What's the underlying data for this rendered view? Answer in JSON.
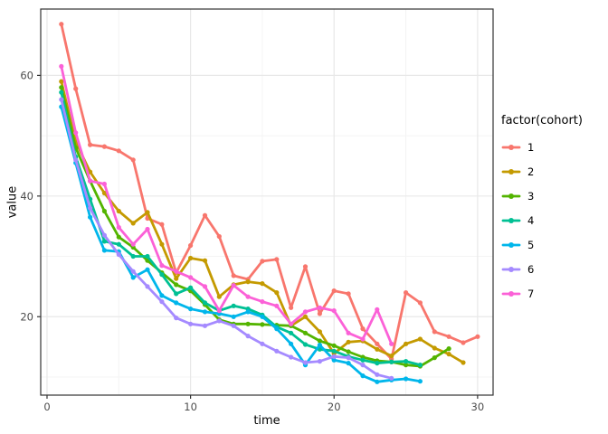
{
  "chart_data": {
    "type": "line",
    "title": "",
    "xlabel": "time",
    "ylabel": "value",
    "legend_title": "factor(cohort)",
    "legend_position": "right",
    "grid": "on",
    "background": "#ffffff",
    "panel_border_color": "#333333",
    "major_grid_color": "#e8e8e8",
    "minor_grid_color": "#f4f4f4",
    "tick_label_color": "#4d4d4d",
    "xlim": [
      -0.44,
      31.08
    ],
    "ylim": [
      7,
      71
    ],
    "x_ticks": [
      0,
      10,
      20,
      30
    ],
    "x_minor_ticks": [
      5,
      15,
      25
    ],
    "y_ticks": [
      20,
      40,
      60
    ],
    "y_minor_ticks": [
      10,
      30,
      50
    ],
    "series": [
      {
        "name": "1",
        "color": "#F8766D",
        "x": [
          1,
          2,
          3,
          4,
          5,
          6,
          7,
          8,
          9,
          10,
          11,
          12,
          13,
          14,
          15,
          16,
          17,
          18,
          19,
          20,
          21,
          22,
          23,
          24,
          25,
          26,
          27,
          28,
          29,
          30
        ],
        "values": [
          68.5,
          57.8,
          48.5,
          48.2,
          47.5,
          46,
          36.3,
          35.3,
          27.3,
          31.8,
          36.8,
          33.3,
          26.8,
          26.2,
          29.2,
          29.5,
          21.5,
          28.3,
          20.5,
          24.3,
          23.8,
          18,
          15.5,
          13,
          24,
          22.3,
          17.5,
          16.7,
          15.7,
          16.7
        ]
      },
      {
        "name": "2",
        "color": "#C49A00",
        "x": [
          1,
          2,
          3,
          4,
          5,
          6,
          7,
          8,
          9,
          10,
          11,
          12,
          13,
          14,
          15,
          16,
          17,
          18,
          19,
          20,
          21,
          22,
          23,
          24,
          25,
          26,
          27,
          28,
          29
        ],
        "values": [
          59,
          49,
          44,
          40.5,
          37.5,
          35.5,
          37.3,
          32,
          26.3,
          29.7,
          29.3,
          23.3,
          25.3,
          25.8,
          25.5,
          24,
          18.5,
          20,
          17.5,
          13.9,
          15.8,
          16,
          14.6,
          13.5,
          15.5,
          16.3,
          14.8,
          13.8,
          12.4
        ]
      },
      {
        "name": "3",
        "color": "#53B400",
        "x": [
          1,
          2,
          3,
          4,
          5,
          6,
          7,
          8,
          9,
          10,
          11,
          12,
          13,
          14,
          15,
          16,
          17,
          18,
          19,
          20,
          21,
          22,
          23,
          24,
          25,
          26,
          27,
          28
        ],
        "values": [
          58,
          48,
          42.5,
          37.5,
          33.2,
          31.5,
          29.3,
          27.3,
          25.3,
          24.3,
          22,
          19.5,
          18.8,
          18.8,
          18.7,
          18.6,
          18.5,
          17.3,
          16,
          15.2,
          14.2,
          13.3,
          12.7,
          12.5,
          12,
          11.8,
          13.2,
          14.7
        ]
      },
      {
        "name": "4",
        "color": "#00C094",
        "x": [
          1,
          2,
          3,
          4,
          5,
          6,
          7,
          8,
          9,
          10,
          11,
          12,
          13,
          14,
          15,
          16,
          17,
          18,
          19,
          20,
          21,
          22,
          23,
          24,
          25,
          26
        ],
        "values": [
          57.2,
          46.5,
          39.5,
          32.5,
          32,
          30,
          30,
          27,
          23.8,
          24.8,
          22.3,
          21,
          21.8,
          21.3,
          20.3,
          18.3,
          17.3,
          15.4,
          14.6,
          14.3,
          13.4,
          12.8,
          12.3,
          12.5,
          12.6,
          12
        ]
      },
      {
        "name": "5",
        "color": "#00B6EB",
        "x": [
          1,
          2,
          3,
          4,
          5,
          6,
          7,
          8,
          9,
          10,
          11,
          12,
          13,
          14,
          15,
          16,
          17,
          18,
          19,
          20,
          21,
          22,
          23,
          24,
          25,
          26
        ],
        "values": [
          54.8,
          45.5,
          36.5,
          31,
          30.8,
          26.5,
          27.8,
          23.5,
          22.3,
          21.3,
          20.8,
          20.5,
          20,
          20.8,
          20,
          18,
          15.5,
          12,
          15.3,
          12.8,
          12.3,
          10.2,
          9.2,
          9.5,
          9.7,
          9.3
        ]
      },
      {
        "name": "6",
        "color": "#A58AFF",
        "x": [
          1,
          2,
          3,
          4,
          5,
          6,
          7,
          8,
          9,
          10,
          11,
          12,
          13,
          14,
          15,
          16,
          17,
          18,
          19,
          20,
          21,
          22,
          23,
          24
        ],
        "values": [
          56,
          46,
          38,
          33.5,
          30.3,
          27.5,
          25,
          22.5,
          19.8,
          18.8,
          18.5,
          19.3,
          18.5,
          16.8,
          15.5,
          14.3,
          13.3,
          12.4,
          12.6,
          13.4,
          13.2,
          12,
          10.4,
          9.8
        ]
      },
      {
        "name": "7",
        "color": "#FB61D7",
        "x": [
          1,
          2,
          3,
          4,
          5,
          6,
          7,
          8,
          9,
          10,
          11,
          12,
          13,
          14,
          15,
          16,
          17,
          18,
          19,
          20,
          21,
          22,
          23,
          24
        ],
        "values": [
          61.5,
          50.5,
          42.5,
          42,
          34.8,
          32,
          34.5,
          28.5,
          27.5,
          26.5,
          25,
          21,
          25.2,
          23.3,
          22.5,
          21.8,
          18.8,
          20.8,
          21.5,
          21,
          17.3,
          16.3,
          21.2,
          15.5
        ]
      }
    ]
  }
}
